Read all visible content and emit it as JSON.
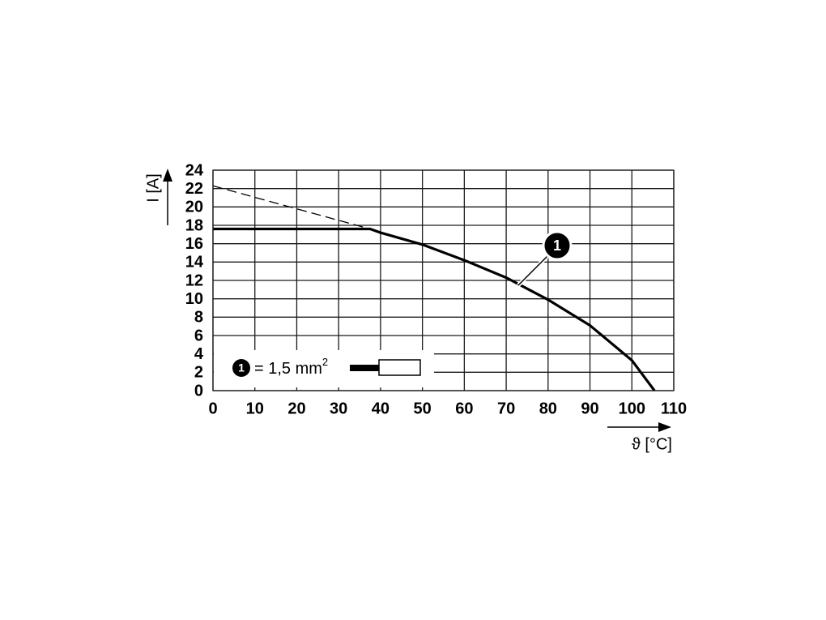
{
  "chart_data": {
    "type": "line",
    "xlabel": "ϑ [°C]",
    "ylabel": "I [A]",
    "xlim": [
      0,
      110
    ],
    "ylim": [
      0,
      24
    ],
    "xticks": [
      0,
      10,
      20,
      30,
      40,
      50,
      60,
      70,
      80,
      90,
      100,
      110
    ],
    "yticks": [
      0,
      2,
      4,
      6,
      8,
      10,
      12,
      14,
      16,
      18,
      20,
      22,
      24
    ],
    "grid": true,
    "series": [
      {
        "name": "1",
        "color": "#000000",
        "style": "solid",
        "x": [
          0,
          37.5,
          40,
          50,
          60,
          70,
          80,
          90,
          100,
          105.4
        ],
        "values": [
          17.6,
          17.6,
          17.2,
          15.9,
          14.2,
          12.3,
          9.9,
          7.1,
          3.3,
          0
        ]
      },
      {
        "color": "#000000",
        "style": "dashed",
        "x": [
          0,
          37.5
        ],
        "values": [
          22.3,
          17.6
        ]
      }
    ],
    "legend": {
      "marker": "1",
      "label": "= 1,5 mm",
      "superscript": "2"
    }
  }
}
